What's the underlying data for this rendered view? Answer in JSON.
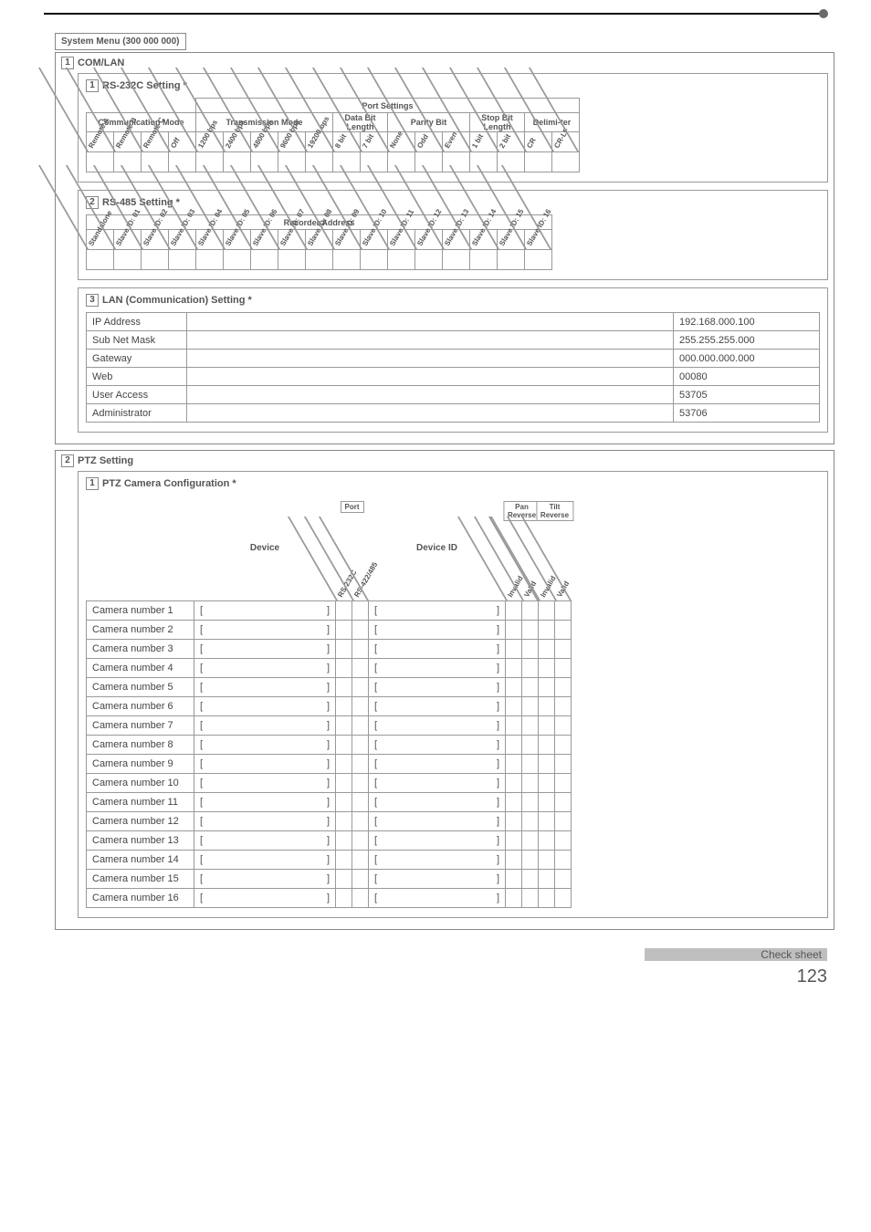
{
  "crumb": "System Menu (300 000 000)",
  "comlan": {
    "num": "1",
    "title": "COM/LAN",
    "rs232": {
      "num": "1",
      "title": "RS-232C Setting *",
      "port_settings_label": "Port Settings",
      "groups": [
        {
          "label": "Communication Mode",
          "cols": [
            "Remote A",
            "Remote B",
            "Remote C",
            "Off"
          ]
        },
        {
          "label": "Transmission Mode",
          "cols": [
            "1200 bps",
            "2400 bps",
            "4800 bps",
            "9600 bps",
            "19200 bps"
          ]
        },
        {
          "label": "Data Bit Length",
          "cols": [
            "8 bit",
            "7 bit"
          ]
        },
        {
          "label": "Parity Bit",
          "cols": [
            "None",
            "Odd",
            "Even"
          ]
        },
        {
          "label": "Stop Bit Length",
          "cols": [
            "1 bit",
            "2 bit"
          ]
        },
        {
          "label": "Delimi-ter",
          "cols": [
            "CR",
            "CR-LF"
          ]
        }
      ]
    },
    "rs485": {
      "num": "2",
      "title": "RS-485 Setting *",
      "group_label": "Recorder Address",
      "cols": [
        "Standalone",
        "Slave ID: 01",
        "Slave ID: 02",
        "Slave ID: 03",
        "Slave ID: 04",
        "Slave ID: 05",
        "Slave ID: 06",
        "Slave ID: 07",
        "Slave ID: 08",
        "Slave ID: 09",
        "Slave ID: 10",
        "Slave ID: 11",
        "Slave ID: 12",
        "Slave ID: 13",
        "Slave ID: 14",
        "Slave ID: 15",
        "Slave ID: 16"
      ]
    },
    "lan": {
      "num": "3",
      "title": "LAN (Communication) Setting *",
      "rows": [
        {
          "k": "IP Address",
          "v": "192.168.000.100"
        },
        {
          "k": "Sub Net Mask",
          "v": "255.255.255.000"
        },
        {
          "k": "Gateway",
          "v": "000.000.000.000"
        },
        {
          "k": "Web",
          "v": "00080"
        },
        {
          "k": "User Access",
          "v": "53705"
        },
        {
          "k": "Administrator",
          "v": "53706"
        }
      ]
    }
  },
  "ptz": {
    "num": "2",
    "title": "PTZ Setting",
    "config": {
      "num": "1",
      "title": "PTZ Camera Configuration *",
      "device_label": "Device",
      "device_id_label": "Device ID",
      "port_label": "Port",
      "port_cols": [
        "RS-232C",
        "RS-422/485"
      ],
      "rev_groups": [
        {
          "label": "Pan Reverse",
          "cols": [
            "Invalid",
            "Valid"
          ]
        },
        {
          "label": "Tilt Reverse",
          "cols": [
            "Invalid",
            "Valid"
          ]
        }
      ],
      "rows": [
        "Camera number 1",
        "Camera number 2",
        "Camera number 3",
        "Camera number 4",
        "Camera number 5",
        "Camera number 6",
        "Camera number 7",
        "Camera number 8",
        "Camera number 9",
        "Camera number 10",
        "Camera number 11",
        "Camera number 12",
        "Camera number 13",
        "Camera number 14",
        "Camera number 15",
        "Camera number 16"
      ]
    }
  },
  "footer": {
    "label": "Check sheet",
    "page": "123"
  },
  "colors": {
    "line": "#999999",
    "text": "#555555"
  }
}
